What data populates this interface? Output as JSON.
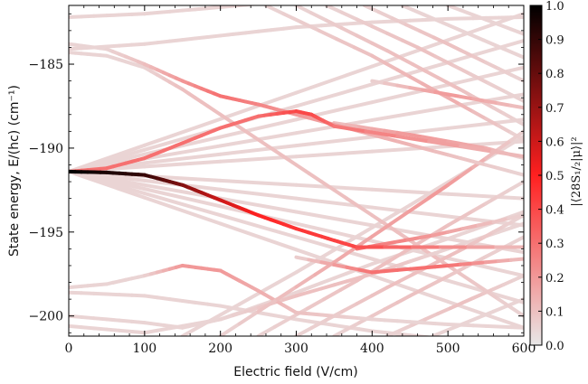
{
  "chart_data": {
    "type": "line",
    "xlabel": "Electric field (V/cm)",
    "ylabel": "State energy, E/(hc) (cm⁻¹)",
    "xlim": [
      0,
      600
    ],
    "ylim": [
      -201.2,
      -181.5
    ],
    "xticks": [
      0,
      100,
      200,
      300,
      400,
      500,
      600
    ],
    "xtick_labels": [
      "0",
      "100",
      "200",
      "300",
      "400",
      "500",
      "600"
    ],
    "yticks": [
      -185,
      -190,
      -195,
      -200
    ],
    "ytick_labels": [
      "−185",
      "−190",
      "−195",
      "−200"
    ],
    "grid": false,
    "colorbar": {
      "label": "|⟨28S₁/₂|μ⟩|²",
      "range": [
        0,
        1
      ],
      "ticks": [
        0.0,
        0.1,
        0.2,
        0.3,
        0.4,
        0.5,
        0.6,
        0.7,
        0.8,
        0.9,
        1.0
      ],
      "tick_labels": [
        "0.0",
        "0.1",
        "0.2",
        "0.3",
        "0.4",
        "0.5",
        "0.6",
        "0.7",
        "0.8",
        "0.9",
        "1.0"
      ],
      "colormap": [
        "#e8e8e8",
        "#ff2020",
        "#000000"
      ]
    },
    "series": [
      {
        "x": [
          0,
          50,
          100,
          150,
          200,
          250,
          300,
          350,
          380,
          600
        ],
        "y": [
          -191.4,
          -191.45,
          -191.6,
          -192.2,
          -193.1,
          -194.0,
          -194.8,
          -195.5,
          -195.9,
          -195.9
        ],
        "overlap": [
          1.0,
          0.95,
          0.9,
          0.75,
          0.6,
          0.5,
          0.45,
          0.42,
          0.4,
          0.1
        ]
      },
      {
        "x": [
          0,
          50,
          100,
          150,
          200,
          250,
          300,
          320,
          350,
          600
        ],
        "y": [
          -191.4,
          -191.2,
          -190.6,
          -189.7,
          -188.8,
          -188.1,
          -187.8,
          -188.0,
          -188.7,
          -190.5
        ],
        "overlap": [
          0.3,
          0.3,
          0.3,
          0.3,
          0.3,
          0.3,
          0.4,
          0.4,
          0.3,
          0.1
        ]
      },
      {
        "x": [
          0,
          600
        ],
        "y": [
          -191.4,
          -182.0
        ],
        "overlap": [
          0.05,
          0.05
        ]
      },
      {
        "x": [
          0,
          600
        ],
        "y": [
          -191.4,
          -183.6
        ],
        "overlap": [
          0.05,
          0.05
        ]
      },
      {
        "x": [
          0,
          600
        ],
        "y": [
          -191.4,
          -185.2
        ],
        "overlap": [
          0.05,
          0.05
        ]
      },
      {
        "x": [
          0,
          600
        ],
        "y": [
          -191.4,
          -186.8
        ],
        "overlap": [
          0.05,
          0.05
        ]
      },
      {
        "x": [
          0,
          600
        ],
        "y": [
          -191.4,
          -188.3
        ],
        "overlap": [
          0.05,
          0.05
        ]
      },
      {
        "x": [
          0,
          600
        ],
        "y": [
          -191.4,
          -189.6
        ],
        "overlap": [
          0.05,
          0.05
        ]
      },
      {
        "x": [
          0,
          600
        ],
        "y": [
          -191.4,
          -193.0
        ],
        "overlap": [
          0.05,
          0.05
        ]
      },
      {
        "x": [
          0,
          600
        ],
        "y": [
          -191.4,
          -194.6
        ],
        "overlap": [
          0.05,
          0.05
        ]
      },
      {
        "x": [
          0,
          600
        ],
        "y": [
          -191.4,
          -196.2
        ],
        "overlap": [
          0.05,
          0.05
        ]
      },
      {
        "x": [
          0,
          600
        ],
        "y": [
          -191.4,
          -197.6
        ],
        "overlap": [
          0.05,
          0.05
        ]
      },
      {
        "x": [
          0,
          600
        ],
        "y": [
          -191.4,
          -199.2
        ],
        "overlap": [
          0.05,
          0.05
        ]
      },
      {
        "x": [
          0,
          600
        ],
        "y": [
          -191.4,
          -200.7
        ],
        "overlap": [
          0.05,
          0.05
        ]
      },
      {
        "x": [
          0,
          100,
          200,
          300,
          400,
          500,
          600
        ],
        "y": [
          -182.2,
          -182.0,
          -181.6,
          -181.2,
          -181.0,
          -180.8,
          -180.6
        ],
        "overlap": [
          0.05,
          0.05,
          0.05,
          0.05,
          0.05,
          0.05,
          0.05
        ]
      },
      {
        "x": [
          0,
          50,
          100,
          150,
          200,
          250,
          300,
          400,
          500,
          600
        ],
        "y": [
          -183.8,
          -184.1,
          -185.0,
          -186.0,
          -186.9,
          -187.4,
          -188.0,
          -189.2,
          -190.4,
          -191.6
        ],
        "overlap": [
          0.05,
          0.05,
          0.1,
          0.2,
          0.3,
          0.25,
          0.2,
          0.15,
          0.1,
          0.05
        ]
      },
      {
        "x": [
          0,
          50,
          100,
          150,
          200,
          300,
          400,
          500,
          600
        ],
        "y": [
          -184.3,
          -184.5,
          -185.2,
          -186.5,
          -188.0,
          -191.0,
          -194.0,
          -197.0,
          -200.0
        ],
        "overlap": [
          0.05,
          0.05,
          0.05,
          0.1,
          0.1,
          0.1,
          0.1,
          0.1,
          0.05
        ]
      },
      {
        "x": [
          0,
          100,
          200,
          300,
          400,
          500,
          600
        ],
        "y": [
          -184.1,
          -183.8,
          -183.3,
          -182.8,
          -182.5,
          -182.3,
          -182.2
        ],
        "overlap": [
          0.05,
          0.05,
          0.05,
          0.05,
          0.05,
          0.05,
          0.05
        ]
      },
      {
        "x": [
          0,
          50,
          100,
          150,
          200,
          250,
          300,
          400,
          500,
          600
        ],
        "y": [
          -198.3,
          -198.1,
          -197.6,
          -197.0,
          -197.3,
          -198.5,
          -199.8,
          -200.2,
          -200.5,
          -200.7
        ],
        "overlap": [
          0.05,
          0.05,
          0.05,
          0.2,
          0.2,
          0.15,
          0.1,
          0.05,
          0.05,
          0.05
        ]
      },
      {
        "x": [
          0,
          100,
          200,
          300,
          400,
          500,
          600
        ],
        "y": [
          -198.6,
          -198.8,
          -199.4,
          -200.2,
          -200.9,
          -201.4,
          -201.8
        ],
        "overlap": [
          0.05,
          0.05,
          0.05,
          0.05,
          0.05,
          0.05,
          0.05
        ]
      },
      {
        "x": [
          0,
          100,
          150,
          200,
          300,
          400,
          500,
          600
        ],
        "y": [
          -200.0,
          -200.4,
          -200.7,
          -200.2,
          -198.8,
          -197.5,
          -196.0,
          -194.5
        ],
        "overlap": [
          0.05,
          0.05,
          0.05,
          0.05,
          0.1,
          0.1,
          0.05,
          0.05
        ]
      },
      {
        "x": [
          0,
          100,
          200,
          300,
          400,
          500,
          600
        ],
        "y": [
          -200.6,
          -201.0,
          -200.2,
          -198.6,
          -196.9,
          -195.4,
          -193.8
        ],
        "overlap": [
          0.05,
          0.05,
          0.05,
          0.05,
          0.05,
          0.05,
          0.05
        ]
      },
      {
        "x": [
          150,
          300,
          450,
          600
        ],
        "y": [
          -201.2,
          -197.4,
          -193.4,
          -189.3
        ],
        "overlap": [
          0.05,
          0.05,
          0.05,
          0.05
        ]
      },
      {
        "x": [
          200,
          350,
          500,
          600
        ],
        "y": [
          -201.2,
          -196.8,
          -192.2,
          -189.0
        ],
        "overlap": [
          0.05,
          0.15,
          0.2,
          0.05
        ]
      },
      {
        "x": [
          250,
          380,
          500,
          600
        ],
        "y": [
          -201.2,
          -197.9,
          -194.6,
          -192.0
        ],
        "overlap": [
          0.05,
          0.1,
          0.1,
          0.05
        ]
      },
      {
        "x": [
          300,
          420,
          520,
          600
        ],
        "y": [
          -201.2,
          -198.3,
          -196.0,
          -194.0
        ],
        "overlap": [
          0.05,
          0.1,
          0.1,
          0.05
        ]
      },
      {
        "x": [
          350,
          450,
          600
        ],
        "y": [
          -201.2,
          -198.8,
          -195.3
        ],
        "overlap": [
          0.05,
          0.1,
          0.05
        ]
      },
      {
        "x": [
          420,
          520,
          600
        ],
        "y": [
          -201.2,
          -199.2,
          -197.6
        ],
        "overlap": [
          0.05,
          0.1,
          0.05
        ]
      },
      {
        "x": [
          480,
          600
        ],
        "y": [
          -201.2,
          -199.0
        ],
        "overlap": [
          0.05,
          0.05
        ]
      },
      {
        "x": [
          260,
          400,
          500,
          600
        ],
        "y": [
          -181.5,
          -184.5,
          -187.0,
          -189.5
        ],
        "overlap": [
          0.05,
          0.1,
          0.15,
          0.05
        ]
      },
      {
        "x": [
          300,
          420,
          520,
          600
        ],
        "y": [
          -181.5,
          -184.2,
          -186.6,
          -188.6
        ],
        "overlap": [
          0.05,
          0.1,
          0.1,
          0.05
        ]
      },
      {
        "x": [
          340,
          460,
          600
        ],
        "y": [
          -181.5,
          -184.0,
          -187.2
        ],
        "overlap": [
          0.05,
          0.1,
          0.05
        ]
      },
      {
        "x": [
          390,
          500,
          600
        ],
        "y": [
          -181.5,
          -183.8,
          -186.0
        ],
        "overlap": [
          0.05,
          0.1,
          0.05
        ]
      },
      {
        "x": [
          440,
          600
        ],
        "y": [
          -181.5,
          -184.6
        ],
        "overlap": [
          0.05,
          0.05
        ]
      },
      {
        "x": [
          500,
          600
        ],
        "y": [
          -181.5,
          -183.2
        ],
        "overlap": [
          0.05,
          0.05
        ]
      },
      {
        "x": [
          380,
          480,
          600
        ],
        "y": [
          -196.0,
          -195.2,
          -194.0
        ],
        "overlap": [
          0.3,
          0.2,
          0.05
        ]
      },
      {
        "x": [
          300,
          400,
          500,
          600
        ],
        "y": [
          -196.5,
          -197.4,
          -197.0,
          -196.6
        ],
        "overlap": [
          0.05,
          0.3,
          0.3,
          0.1
        ]
      },
      {
        "x": [
          350,
          450,
          550,
          600
        ],
        "y": [
          -188.5,
          -189.2,
          -190.0,
          -190.6
        ],
        "overlap": [
          0.1,
          0.2,
          0.15,
          0.05
        ]
      },
      {
        "x": [
          400,
          500,
          600
        ],
        "y": [
          -186.0,
          -186.8,
          -187.6
        ],
        "overlap": [
          0.05,
          0.2,
          0.1
        ]
      }
    ]
  }
}
